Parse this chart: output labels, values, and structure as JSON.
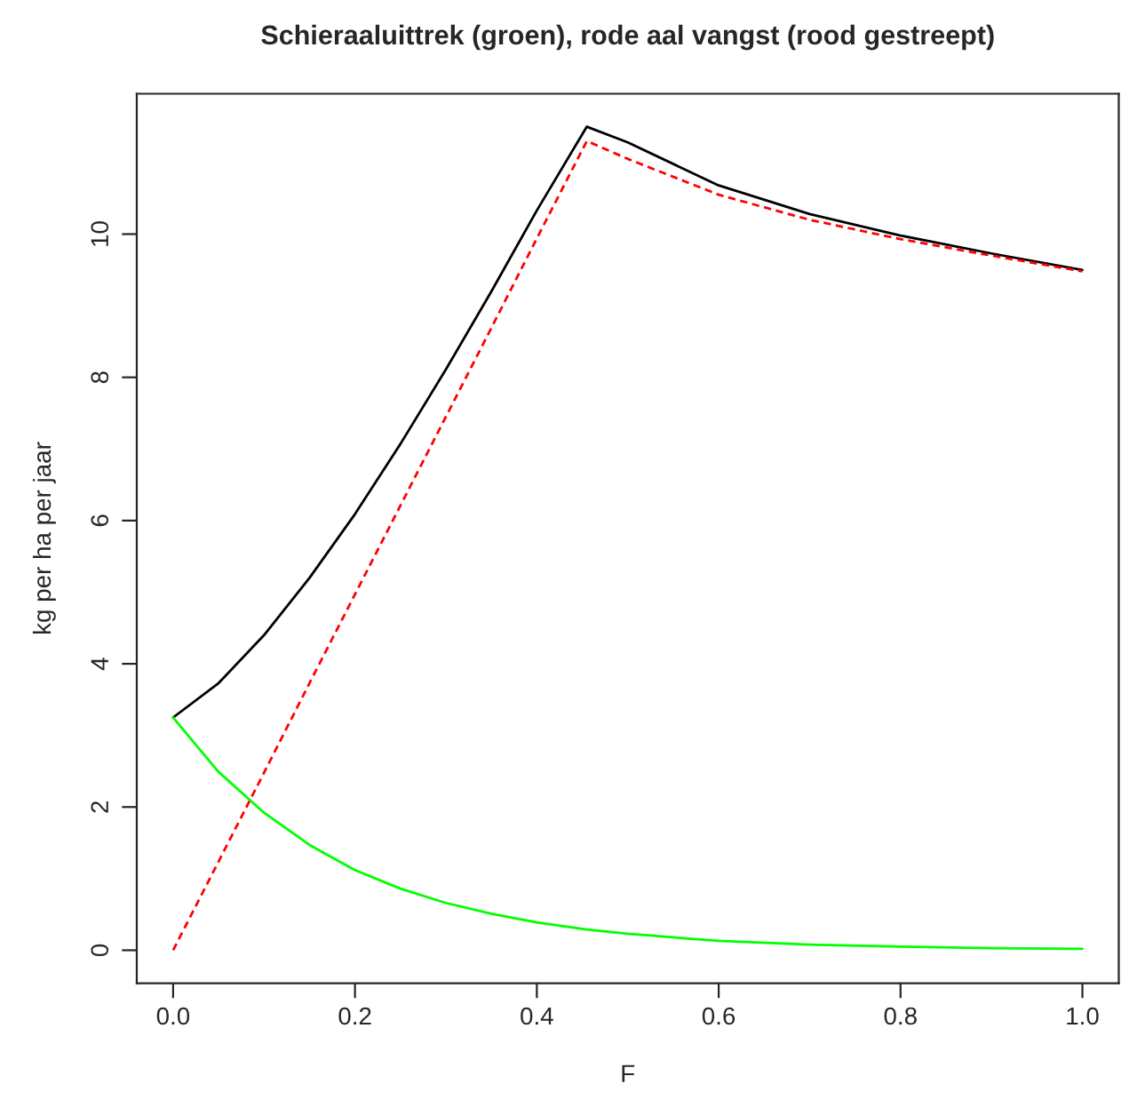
{
  "chart_data": {
    "type": "line",
    "title": "Schieraaluittrek (groen), rode aal vangst (rood gestreept)",
    "xlabel": "F",
    "ylabel": "kg per ha per jaar",
    "xlim": [
      -0.04,
      1.04
    ],
    "ylim": [
      -0.46,
      11.96
    ],
    "xticks": [
      {
        "value": 0,
        "label": "0.0"
      },
      0.2,
      0.4,
      0.6,
      0.8,
      {
        "value": 1,
        "label": "1.0"
      }
    ],
    "yticks": [
      0,
      2,
      4,
      6,
      8,
      10
    ],
    "grid": false,
    "series": [
      {
        "color": "#000000",
        "line_style": "solid",
        "x": [
          0,
          0.05,
          0.1,
          0.15,
          0.2,
          0.25,
          0.3,
          0.35,
          0.4,
          0.455,
          0.5,
          0.6,
          0.7,
          0.8,
          0.9,
          1.0
        ],
        "values": [
          3.25,
          3.73,
          4.4,
          5.2,
          6.09,
          7.07,
          8.11,
          9.2,
          10.33,
          11.5,
          11.28,
          10.68,
          10.28,
          9.98,
          9.73,
          9.5
        ]
      },
      {
        "color": "#ff0000",
        "line_style": "dashed",
        "x": [
          0,
          0.05,
          0.1,
          0.15,
          0.2,
          0.25,
          0.3,
          0.35,
          0.4,
          0.455,
          0.5,
          0.6,
          0.7,
          0.8,
          0.9,
          1.0
        ],
        "values": [
          0,
          1.24,
          2.48,
          3.73,
          4.97,
          6.21,
          7.45,
          8.69,
          9.94,
          11.3,
          11.05,
          10.55,
          10.2,
          9.93,
          9.7,
          9.48
        ]
      },
      {
        "color": "#00ff00",
        "line_style": "solid",
        "x": [
          0,
          0.05,
          0.1,
          0.15,
          0.2,
          0.25,
          0.3,
          0.35,
          0.4,
          0.455,
          0.5,
          0.6,
          0.7,
          0.8,
          0.9,
          1.0
        ],
        "values": [
          3.25,
          2.49,
          1.92,
          1.47,
          1.12,
          0.86,
          0.66,
          0.51,
          0.39,
          0.29,
          0.23,
          0.13,
          0.08,
          0.05,
          0.03,
          0.02
        ]
      }
    ]
  }
}
